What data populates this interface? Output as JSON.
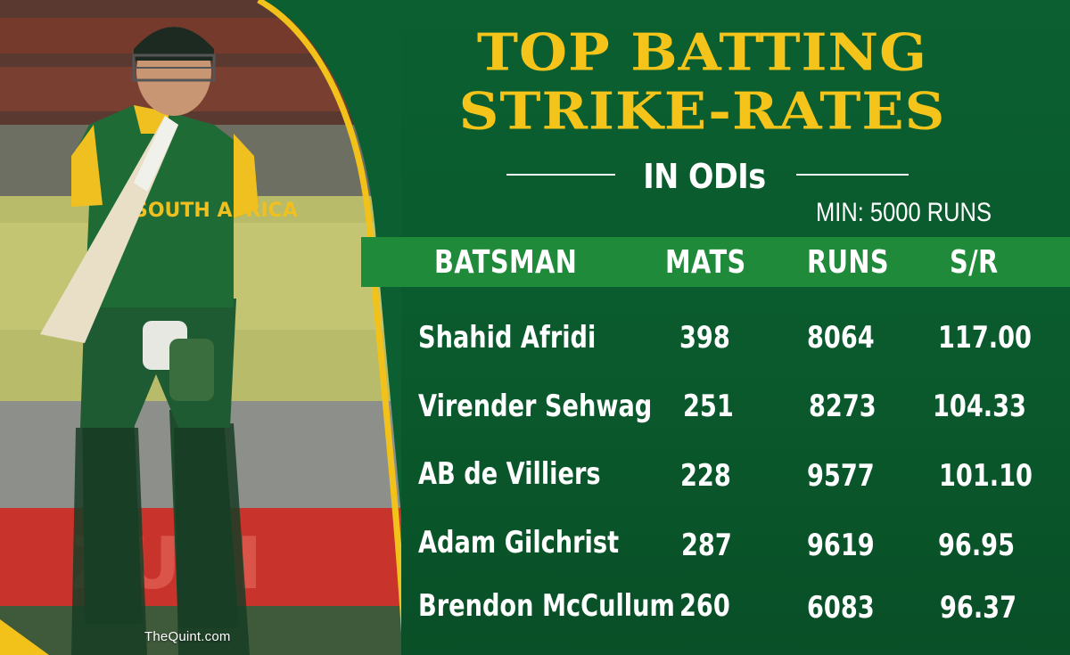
{
  "title_line1": "TOP BATTING",
  "title_line2": "STRIKE-RATES",
  "subtitle": "IN ODIs",
  "note": "MIN: 5000 RUNS",
  "columns": [
    "BATSMAN",
    "MATS",
    "RUNS",
    "S/R"
  ],
  "rows": [
    {
      "batsman": "Shahid Afridi",
      "mats": "398",
      "runs": "8064",
      "sr": "117.00"
    },
    {
      "batsman": "Virender Sehwag",
      "mats": "251",
      "runs": "8273",
      "sr": "104.33"
    },
    {
      "batsman": "AB de Villiers",
      "mats": "228",
      "runs": "9577",
      "sr": "101.10"
    },
    {
      "batsman": "Adam Gilchrist",
      "mats": "287",
      "runs": "9619",
      "sr": "96.95"
    },
    {
      "batsman": "Brendon McCullum",
      "mats": "260",
      "runs": "6083",
      "sr": "96.37"
    }
  ],
  "photo": {
    "jersey_text": "SOUTH AFRICA"
  },
  "watermark": "TheQuint.com",
  "colors": {
    "background": "#0a5a2d",
    "title": "#f5c41b",
    "band": "#1f8a3a",
    "accent": "#f2c21a"
  }
}
